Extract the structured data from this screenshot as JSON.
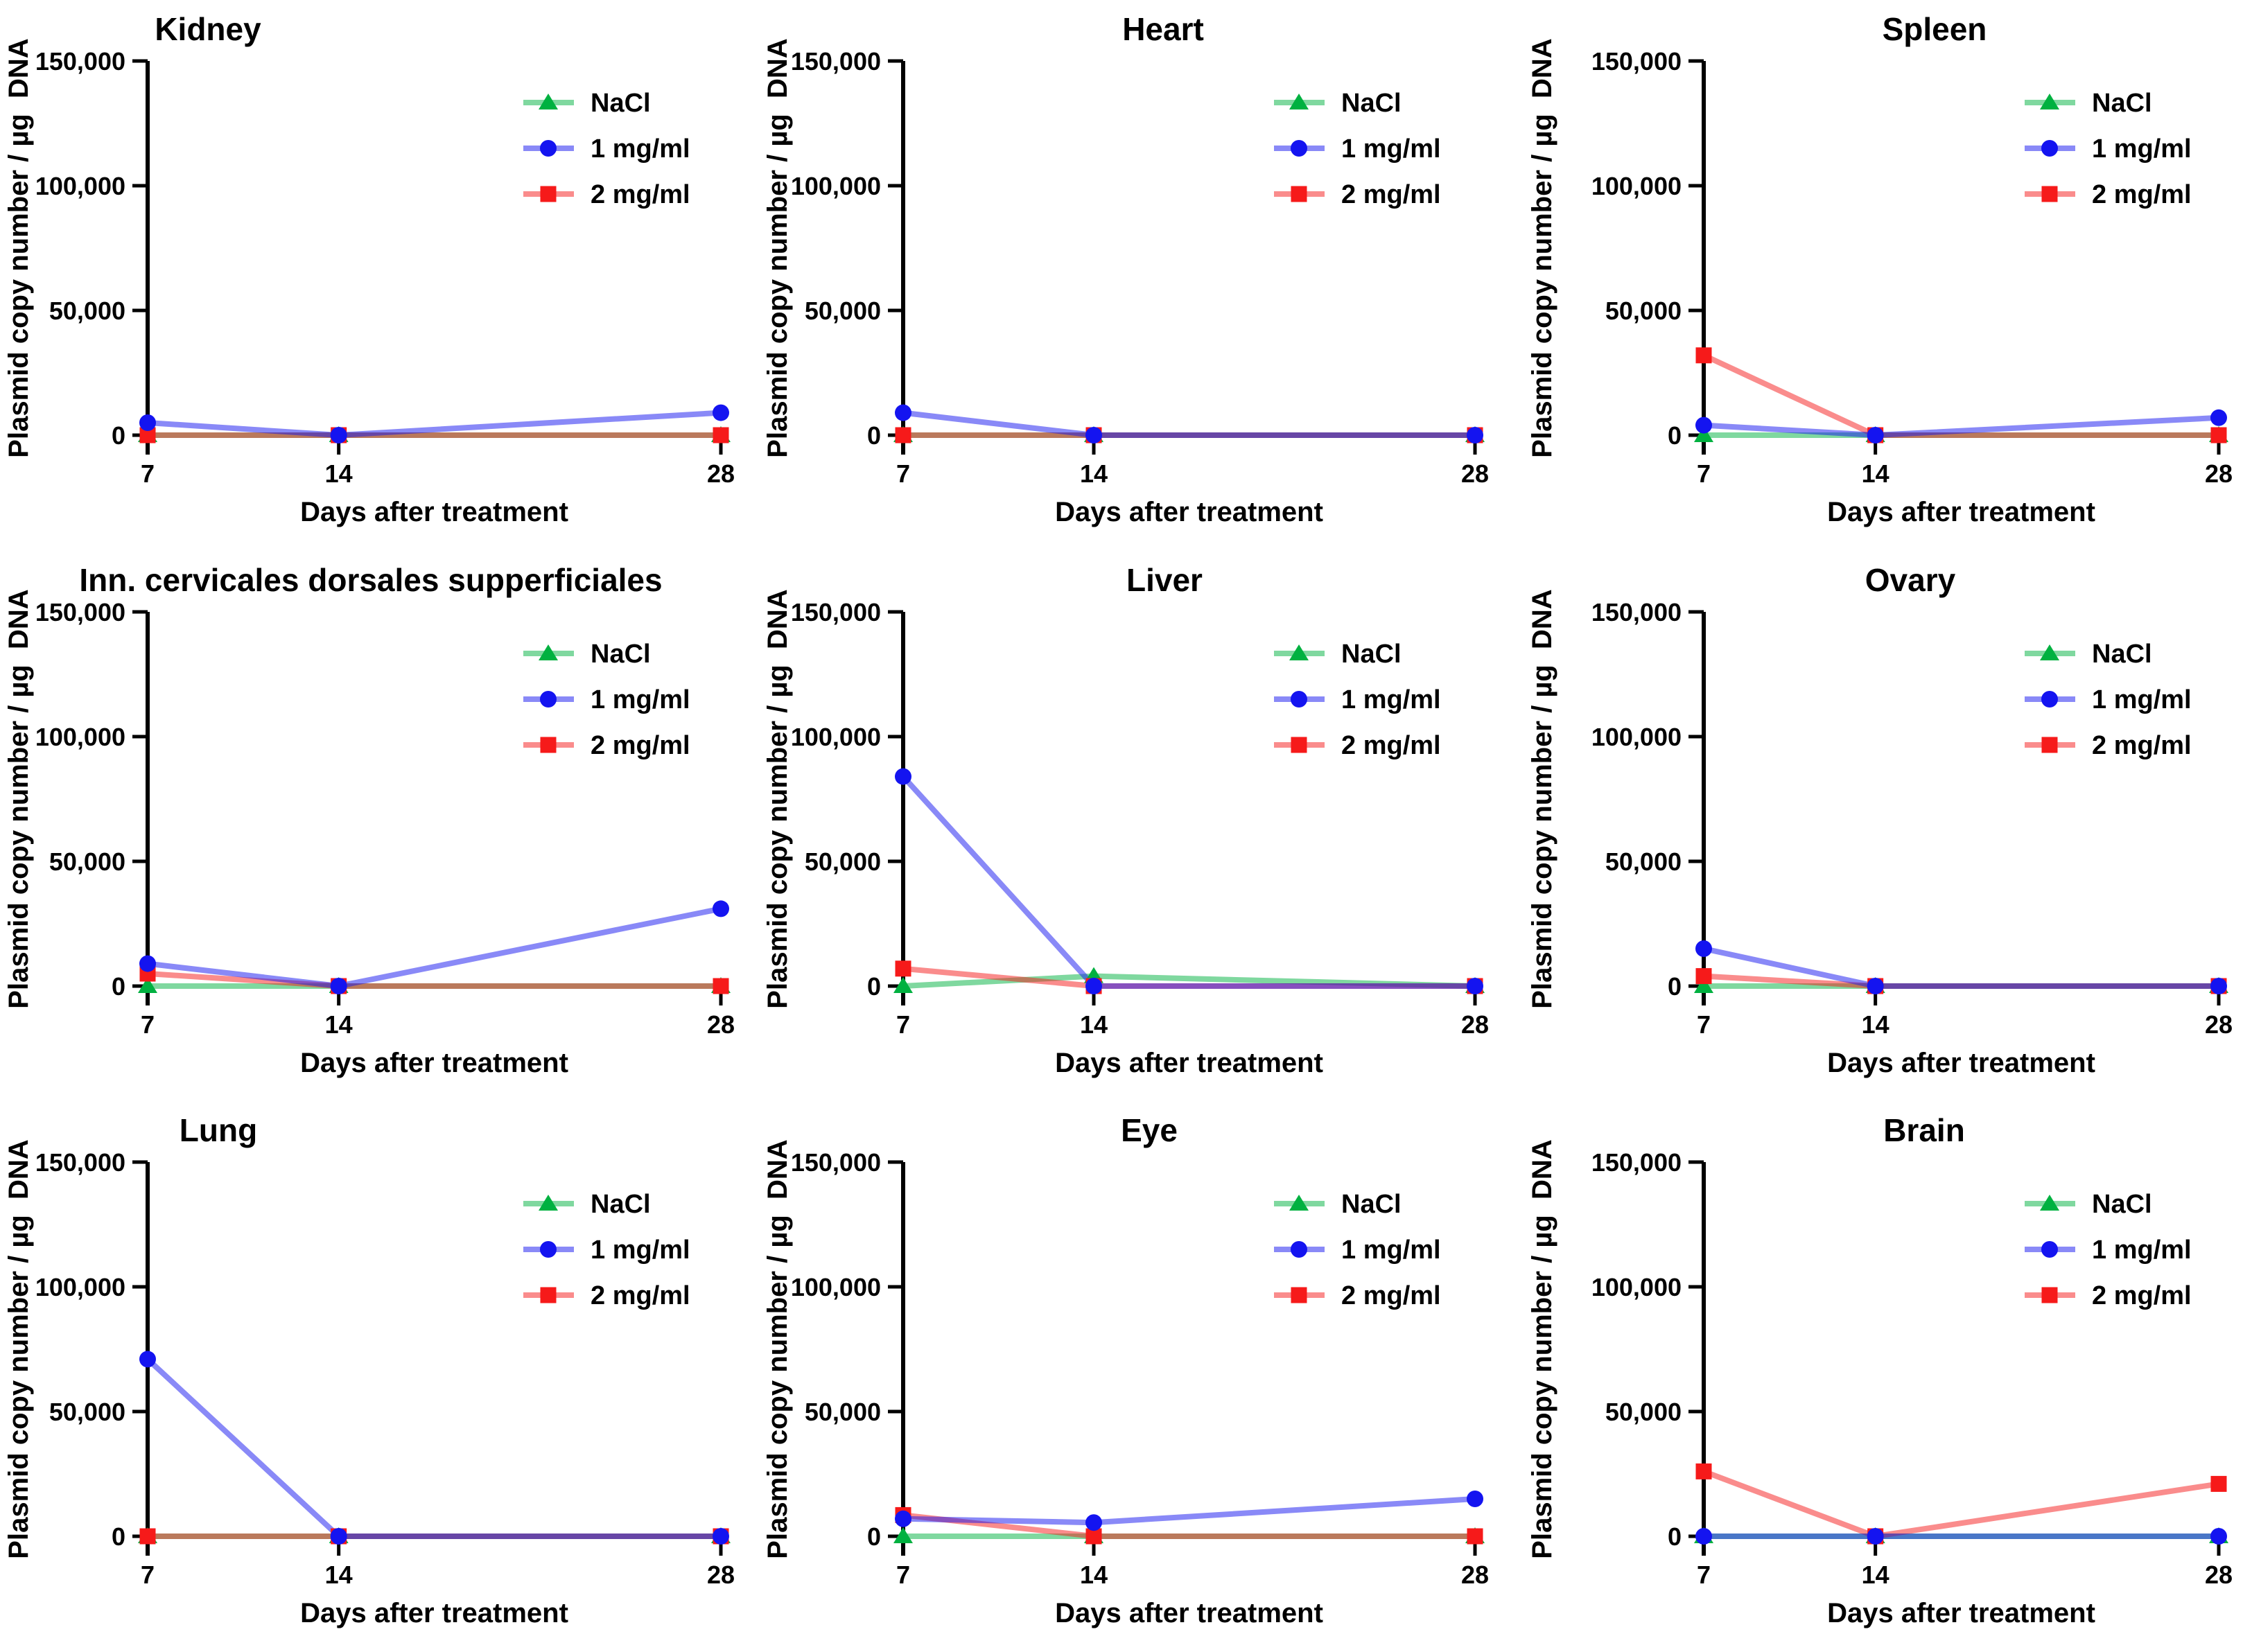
{
  "figure": {
    "xlabel": "Days after treatment",
    "ylabel": "Plasmid copy number / µg  DNA",
    "x_values": [
      7,
      14,
      28
    ],
    "x_tick_labels": [
      "7",
      "14",
      "28"
    ],
    "y_ticks": [
      0,
      50000,
      100000,
      150000
    ],
    "y_tick_labels": [
      "0",
      "50,000",
      "100,000",
      "150,000"
    ],
    "ylim": [
      0,
      150000
    ],
    "grid": "off",
    "legend_position": "top-right-inside",
    "legend_labels": [
      "NaCl",
      "1 mg/ml",
      "2 mg/ml"
    ],
    "colors": {
      "NaCl": "#00B140",
      "1 mg/ml": "#1414F0",
      "2 mg/ml": "#F61A1A"
    },
    "markers": {
      "NaCl": "triangle",
      "1 mg/ml": "circle",
      "2 mg/ml": "square"
    },
    "line_opacity": 0.5
  },
  "chart_data": [
    {
      "type": "line",
      "title": "Kidney",
      "title_x": 300,
      "axis_x": 213,
      "x_right": 1040,
      "ylabel_x": 40,
      "categories": [
        7,
        14,
        28
      ],
      "series": [
        {
          "name": "NaCl",
          "values": [
            0,
            0,
            0
          ]
        },
        {
          "name": "1 mg/ml",
          "values": [
            5000,
            0,
            9000
          ]
        },
        {
          "name": "2 mg/ml",
          "values": [
            0,
            0,
            0
          ]
        }
      ]
    },
    {
      "type": "line",
      "title": "Heart",
      "title_x": 595,
      "axis_x": 220,
      "x_right": 1045,
      "ylabel_x": 52,
      "categories": [
        7,
        14,
        28
      ],
      "series": [
        {
          "name": "NaCl",
          "values": [
            0,
            0,
            0
          ]
        },
        {
          "name": "1 mg/ml",
          "values": [
            9000,
            0,
            0
          ]
        },
        {
          "name": "2 mg/ml",
          "values": [
            0,
            0,
            0
          ]
        }
      ]
    },
    {
      "type": "line",
      "title": "Spleen",
      "title_x": 625,
      "axis_x": 292,
      "x_right": 1035,
      "ylabel_x": 72,
      "categories": [
        7,
        14,
        28
      ],
      "series": [
        {
          "name": "NaCl",
          "values": [
            0,
            0,
            0
          ]
        },
        {
          "name": "1 mg/ml",
          "values": [
            4000,
            0,
            7000
          ]
        },
        {
          "name": "2 mg/ml",
          "values": [
            32000,
            0,
            0
          ]
        }
      ]
    },
    {
      "type": "line",
      "title": "Inn. cervicales dorsales supperficiales",
      "title_x": 535,
      "axis_x": 213,
      "x_right": 1040,
      "ylabel_x": 40,
      "categories": [
        7,
        14,
        28
      ],
      "series": [
        {
          "name": "NaCl",
          "values": [
            0,
            0,
            0
          ]
        },
        {
          "name": "1 mg/ml",
          "values": [
            9000,
            0,
            31000
          ]
        },
        {
          "name": "2 mg/ml",
          "values": [
            5000,
            0,
            0
          ]
        }
      ]
    },
    {
      "type": "line",
      "title": "Liver",
      "title_x": 597,
      "axis_x": 220,
      "x_right": 1045,
      "ylabel_x": 52,
      "categories": [
        7,
        14,
        28
      ],
      "series": [
        {
          "name": "NaCl",
          "values": [
            0,
            4000,
            0
          ]
        },
        {
          "name": "1 mg/ml",
          "values": [
            84000,
            0,
            0
          ]
        },
        {
          "name": "2 mg/ml",
          "values": [
            7000,
            0,
            0
          ]
        }
      ]
    },
    {
      "type": "line",
      "title": "Ovary",
      "title_x": 590,
      "axis_x": 292,
      "x_right": 1035,
      "ylabel_x": 72,
      "categories": [
        7,
        14,
        28
      ],
      "series": [
        {
          "name": "NaCl",
          "values": [
            0,
            0,
            0
          ]
        },
        {
          "name": "1 mg/ml",
          "values": [
            15000,
            0,
            0
          ]
        },
        {
          "name": "2 mg/ml",
          "values": [
            4000,
            0,
            0
          ]
        }
      ]
    },
    {
      "type": "line",
      "title": "Lung",
      "title_x": 315,
      "axis_x": 213,
      "x_right": 1040,
      "ylabel_x": 40,
      "categories": [
        7,
        14,
        28
      ],
      "series": [
        {
          "name": "NaCl",
          "values": [
            0,
            0,
            0
          ]
        },
        {
          "name": "1 mg/ml",
          "values": [
            71000,
            0,
            0
          ]
        },
        {
          "name": "2 mg/ml",
          "values": [
            0,
            0,
            0
          ]
        }
      ]
    },
    {
      "type": "line",
      "title": "Eye",
      "title_x": 575,
      "axis_x": 220,
      "x_right": 1045,
      "ylabel_x": 52,
      "categories": [
        7,
        14,
        28
      ],
      "series": [
        {
          "name": "NaCl",
          "values": [
            0,
            0,
            0
          ]
        },
        {
          "name": "1 mg/ml",
          "values": [
            7000,
            5500,
            15000
          ]
        },
        {
          "name": "2 mg/ml",
          "values": [
            8500,
            0,
            0
          ]
        }
      ]
    },
    {
      "type": "line",
      "title": "Brain",
      "title_x": 610,
      "axis_x": 292,
      "x_right": 1035,
      "ylabel_x": 72,
      "categories": [
        7,
        14,
        28
      ],
      "series": [
        {
          "name": "NaCl",
          "values": [
            0,
            0,
            0
          ]
        },
        {
          "name": "1 mg/ml",
          "values": [
            0,
            0,
            0
          ]
        },
        {
          "name": "2 mg/ml",
          "values": [
            26000,
            0,
            21000
          ]
        }
      ]
    }
  ]
}
